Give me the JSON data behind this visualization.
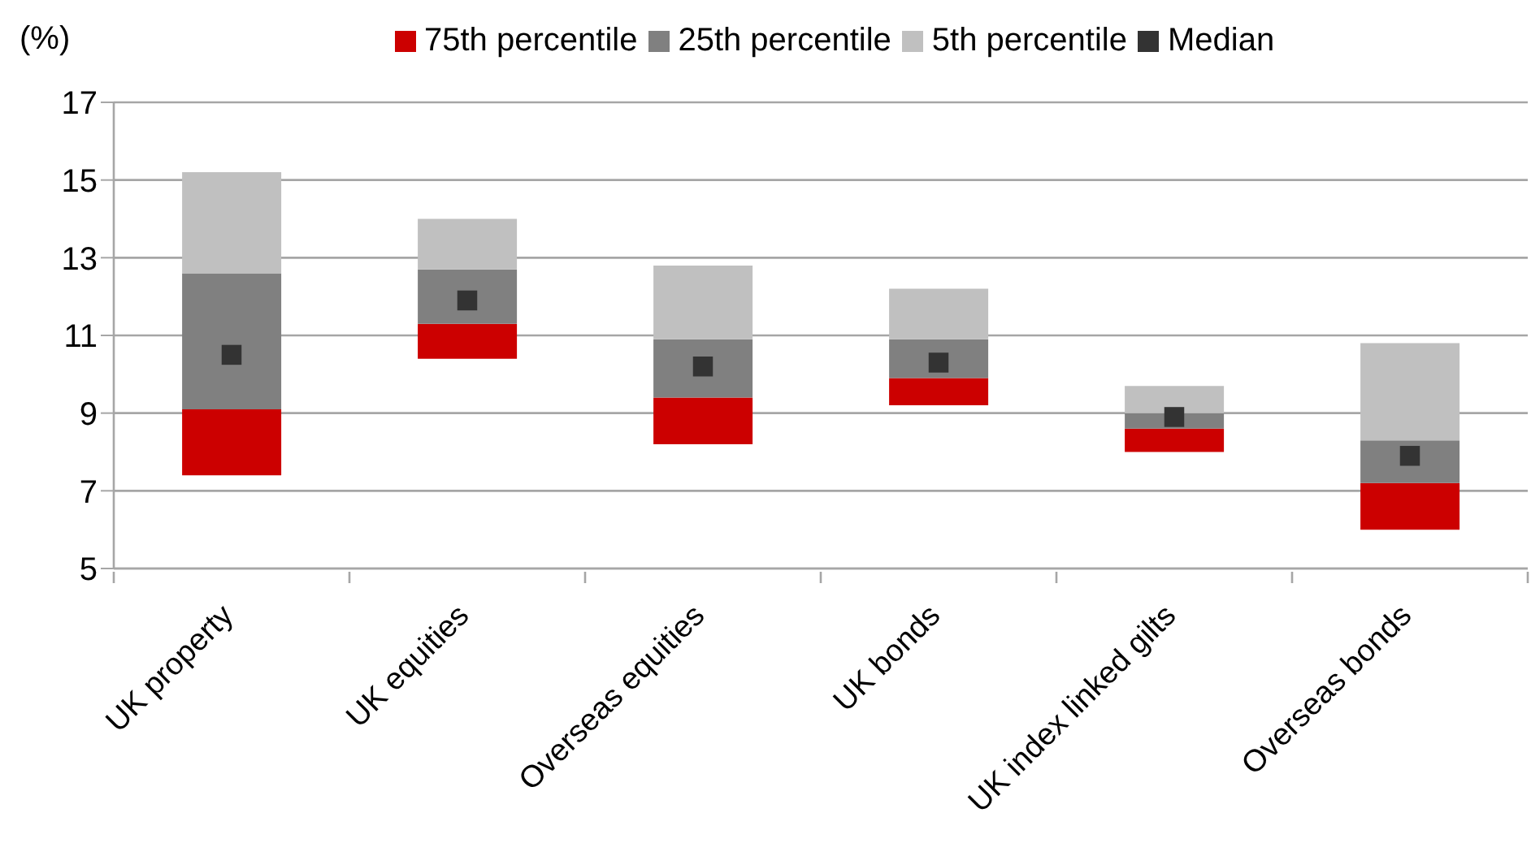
{
  "chart_data": {
    "type": "bar",
    "ylabel": "(%)",
    "categories": [
      "UK property",
      "UK equities",
      "Overseas equities",
      "UK bonds",
      "UK index linked gilts",
      "Overseas bonds"
    ],
    "series": [
      {
        "name": "75th percentile",
        "color": "#cc0000",
        "base": [
          7.4,
          10.4,
          8.2,
          9.2,
          8.0,
          6.0
        ],
        "values": [
          1.7,
          0.9,
          1.2,
          0.7,
          0.6,
          1.2
        ]
      },
      {
        "name": "25th percentile",
        "color": "#808080",
        "base": [
          9.1,
          11.3,
          9.4,
          9.9,
          8.6,
          7.2
        ],
        "values": [
          3.5,
          1.4,
          1.5,
          1.0,
          0.4,
          1.1
        ]
      },
      {
        "name": "5th percentile",
        "color": "#c0c0c0",
        "base": [
          12.6,
          12.7,
          10.9,
          10.9,
          9.0,
          8.3
        ],
        "values": [
          2.6,
          1.3,
          1.9,
          1.3,
          0.7,
          2.5
        ]
      },
      {
        "name": "Median",
        "type": "scatter",
        "color": "#333333",
        "x": [
          "UK property",
          "UK equities",
          "Overseas equities",
          "UK bonds",
          "UK index linked gilts",
          "Overseas bonds"
        ],
        "values": [
          10.5,
          11.9,
          10.2,
          10.3,
          8.9,
          7.9
        ]
      }
    ],
    "marker": "square",
    "ylim": [
      5,
      17
    ],
    "yticks": [
      5,
      7,
      9,
      11,
      13,
      15,
      17
    ],
    "grid": "y",
    "legend": "top"
  }
}
